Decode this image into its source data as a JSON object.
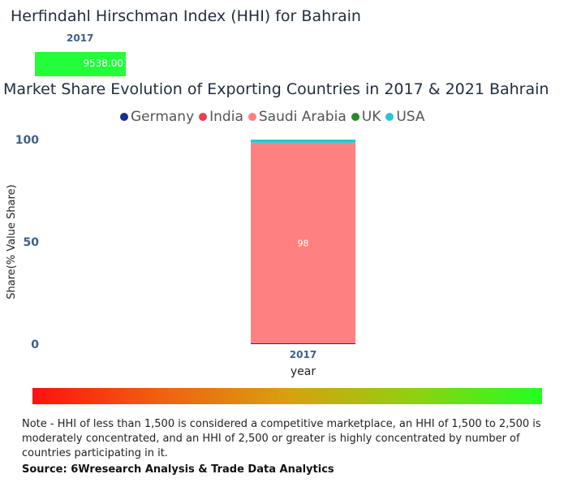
{
  "hhi": {
    "title": "Herfindahl Hirschman Index (HHI) for Bahrain",
    "year": "2017",
    "value_label": "9538.00",
    "value": 9538.0,
    "bar_color": "#22ff3a"
  },
  "chart_data": {
    "type": "bar",
    "stacked": true,
    "title": "Market Share Evolution of Exporting Countries in 2017 & 2021 Bahrain",
    "xlabel": "year",
    "ylabel": "Share(% Value Share)",
    "ylim": [
      0,
      100
    ],
    "yticks": [
      "0",
      "50",
      "100"
    ],
    "categories": [
      "2017"
    ],
    "legend_position": "top",
    "series": [
      {
        "name": "Germany",
        "color": "#1b2f8f",
        "values": [
          0.5
        ]
      },
      {
        "name": "India",
        "color": "#e8404e",
        "values": [
          0
        ]
      },
      {
        "name": "Saudi Arabia",
        "color": "#ff8080",
        "values": [
          98
        ]
      },
      {
        "name": "UK",
        "color": "#2a8a2a",
        "values": [
          0
        ]
      },
      {
        "name": "USA",
        "color": "#26c6da",
        "values": [
          1.5
        ]
      }
    ],
    "data_labels": [
      {
        "series": "Saudi Arabia",
        "category": "2017",
        "text": "98"
      }
    ]
  },
  "note": "Note - HHI of less than 1,500 is considered a competitive marketplace, an HHI of 1,500 to 2,500 is moderately concentrated, and an HHI of 2,500 or greater is highly concentrated by number of countries participating in it.",
  "source": "Source: 6Wresearch Analysis & Trade Data Analytics"
}
